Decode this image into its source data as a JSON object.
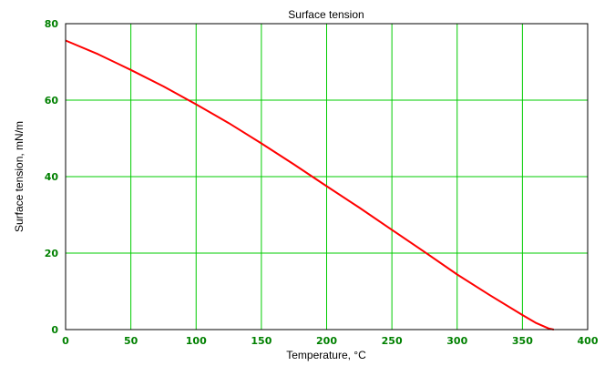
{
  "colors": {
    "background": "#ffffff",
    "plot_border": "#000000",
    "grid": "#00cc00",
    "tick_label": "#008000",
    "series_line": "#ff0000",
    "text": "#000000"
  },
  "chart_data": {
    "type": "line",
    "title": "Surface tension",
    "xlabel": "Temperature, °C",
    "ylabel": "Surface tension, mN/m",
    "xlim": [
      0,
      400
    ],
    "ylim": [
      0,
      80
    ],
    "xticks": [
      0,
      50,
      100,
      150,
      200,
      250,
      300,
      350,
      400
    ],
    "yticks": [
      0,
      20,
      40,
      60,
      80
    ],
    "grid": true,
    "legend": "none",
    "series": [
      {
        "x": [
          0,
          25,
          50,
          75,
          100,
          125,
          150,
          175,
          200,
          225,
          250,
          275,
          300,
          325,
          350,
          360,
          370,
          374
        ],
        "y": [
          75.6,
          72.0,
          67.9,
          63.6,
          58.9,
          54.0,
          48.7,
          43.2,
          37.5,
          31.9,
          26.1,
          20.3,
          14.4,
          9.0,
          3.8,
          1.8,
          0.3,
          0
        ]
      }
    ]
  }
}
